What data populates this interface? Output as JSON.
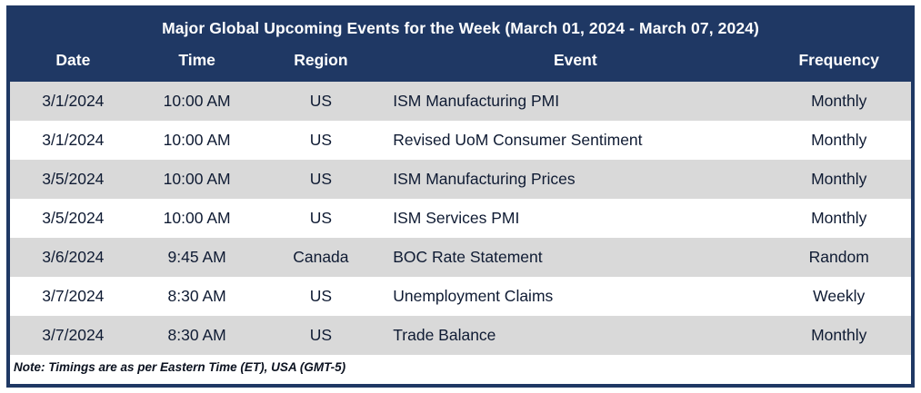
{
  "title": "Major Global Upcoming Events for the Week (March 01, 2024 - March 07, 2024)",
  "columns": {
    "date": "Date",
    "time": "Time",
    "region": "Region",
    "event": "Event",
    "frequency": "Frequency"
  },
  "rows": [
    {
      "date": "3/1/2024",
      "time": "10:00 AM",
      "region": "US",
      "event": "ISM Manufacturing PMI",
      "frequency": "Monthly"
    },
    {
      "date": "3/1/2024",
      "time": "10:00 AM",
      "region": "US",
      "event": "Revised UoM Consumer Sentiment",
      "frequency": "Monthly"
    },
    {
      "date": "3/5/2024",
      "time": "10:00 AM",
      "region": "US",
      "event": "ISM Manufacturing Prices",
      "frequency": "Monthly"
    },
    {
      "date": "3/5/2024",
      "time": "10:00 AM",
      "region": "US",
      "event": "ISM Services PMI",
      "frequency": "Monthly"
    },
    {
      "date": "3/6/2024",
      "time": "9:45 AM",
      "region": "Canada",
      "event": "BOC Rate Statement",
      "frequency": "Random"
    },
    {
      "date": "3/7/2024",
      "time": "8:30 AM",
      "region": "US",
      "event": "Unemployment Claims",
      "frequency": "Weekly"
    },
    {
      "date": "3/7/2024",
      "time": "8:30 AM",
      "region": "US",
      "event": "Trade Balance",
      "frequency": "Monthly"
    }
  ],
  "note": "Note: Timings are as per Eastern Time (ET), USA (GMT-5)",
  "colors": {
    "header_navy": "#1f3864",
    "row_gray": "#d9d9d9",
    "row_white": "#ffffff",
    "body_text": "#0f1b33"
  }
}
